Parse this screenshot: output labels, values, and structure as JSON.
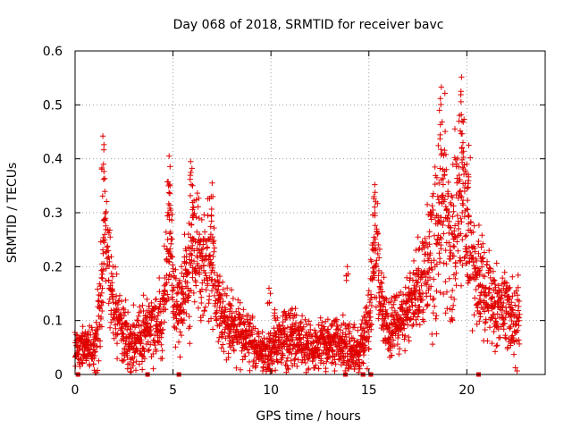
{
  "chart_data": {
    "type": "scatter",
    "title": "Day 068 of 2018, SRMTID for receiver bavc",
    "xlabel": "GPS time / hours",
    "ylabel": "SRMTID / TECUs",
    "xlim": [
      0,
      24
    ],
    "ylim": [
      0,
      0.6
    ],
    "xticks": [
      "0",
      "5",
      "10",
      "15",
      "20"
    ],
    "yticks": [
      "0",
      "0.1",
      "0.2",
      "0.3",
      "0.4",
      "0.5",
      "0.6"
    ],
    "grid": true,
    "marker": "+",
    "series": [
      {
        "name": "SRMTID",
        "color": "#e00000",
        "envelope_note": "approximate activity envelope (hours, typical value, spread) used to estimate the dense point cloud",
        "envelope": [
          [
            0.0,
            0.05,
            0.03
          ],
          [
            0.5,
            0.05,
            0.03
          ],
          [
            1.0,
            0.05,
            0.04
          ],
          [
            1.3,
            0.12,
            0.08
          ],
          [
            1.5,
            0.28,
            0.1
          ],
          [
            1.7,
            0.2,
            0.08
          ],
          [
            2.0,
            0.12,
            0.06
          ],
          [
            2.5,
            0.07,
            0.05
          ],
          [
            3.0,
            0.06,
            0.05
          ],
          [
            3.5,
            0.07,
            0.05
          ],
          [
            4.0,
            0.09,
            0.05
          ],
          [
            4.5,
            0.11,
            0.06
          ],
          [
            4.8,
            0.25,
            0.12
          ],
          [
            5.2,
            0.12,
            0.06
          ],
          [
            5.5,
            0.14,
            0.07
          ],
          [
            6.0,
            0.25,
            0.12
          ],
          [
            6.5,
            0.2,
            0.08
          ],
          [
            7.0,
            0.22,
            0.09
          ],
          [
            7.5,
            0.1,
            0.05
          ],
          [
            8.0,
            0.09,
            0.05
          ],
          [
            8.5,
            0.08,
            0.05
          ],
          [
            9.0,
            0.06,
            0.04
          ],
          [
            9.5,
            0.04,
            0.03
          ],
          [
            10.0,
            0.04,
            0.04
          ],
          [
            10.5,
            0.06,
            0.04
          ],
          [
            11.0,
            0.07,
            0.05
          ],
          [
            11.5,
            0.06,
            0.04
          ],
          [
            12.0,
            0.05,
            0.04
          ],
          [
            12.5,
            0.05,
            0.04
          ],
          [
            13.0,
            0.06,
            0.04
          ],
          [
            13.5,
            0.05,
            0.04
          ],
          [
            14.0,
            0.05,
            0.05
          ],
          [
            14.5,
            0.04,
            0.04
          ],
          [
            15.0,
            0.1,
            0.06
          ],
          [
            15.3,
            0.25,
            0.1
          ],
          [
            15.7,
            0.12,
            0.06
          ],
          [
            16.0,
            0.08,
            0.05
          ],
          [
            16.5,
            0.1,
            0.05
          ],
          [
            17.0,
            0.12,
            0.06
          ],
          [
            17.5,
            0.15,
            0.07
          ],
          [
            18.0,
            0.2,
            0.1
          ],
          [
            18.5,
            0.25,
            0.12
          ],
          [
            18.8,
            0.35,
            0.15
          ],
          [
            19.2,
            0.2,
            0.12
          ],
          [
            19.5,
            0.3,
            0.15
          ],
          [
            19.8,
            0.35,
            0.15
          ],
          [
            20.0,
            0.25,
            0.1
          ],
          [
            20.5,
            0.18,
            0.08
          ],
          [
            21.0,
            0.15,
            0.07
          ],
          [
            21.5,
            0.12,
            0.06
          ],
          [
            22.0,
            0.12,
            0.06
          ],
          [
            22.5,
            0.1,
            0.06
          ]
        ],
        "peaks": [
          [
            1.42,
            0.442
          ],
          [
            1.45,
            0.39
          ],
          [
            4.8,
            0.405
          ],
          [
            4.85,
            0.35
          ],
          [
            5.9,
            0.395
          ],
          [
            6.0,
            0.35
          ],
          [
            7.0,
            0.355
          ],
          [
            15.3,
            0.352
          ],
          [
            18.7,
            0.533
          ],
          [
            18.6,
            0.49
          ],
          [
            19.7,
            0.525
          ],
          [
            19.75,
            0.47
          ],
          [
            19.8,
            0.43
          ],
          [
            20.1,
            0.425
          ],
          [
            20.0,
            0.39
          ],
          [
            13.9,
            0.2
          ],
          [
            9.9,
            0.16
          ],
          [
            10.2,
            0.12
          ]
        ],
        "zero_markers": [
          0.15,
          3.7,
          5.3,
          13.8,
          14.7,
          15.1,
          20.6
        ]
      }
    ]
  }
}
